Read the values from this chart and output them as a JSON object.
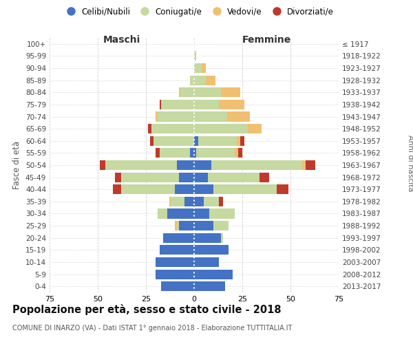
{
  "age_groups": [
    "0-4",
    "5-9",
    "10-14",
    "15-19",
    "20-24",
    "25-29",
    "30-34",
    "35-39",
    "40-44",
    "45-49",
    "50-54",
    "55-59",
    "60-64",
    "65-69",
    "70-74",
    "75-79",
    "80-84",
    "85-89",
    "90-94",
    "95-99",
    "100+"
  ],
  "birth_years": [
    "2013-2017",
    "2008-2012",
    "2003-2007",
    "1998-2002",
    "1993-1997",
    "1988-1992",
    "1983-1987",
    "1978-1982",
    "1973-1977",
    "1968-1972",
    "1963-1967",
    "1958-1962",
    "1953-1957",
    "1948-1952",
    "1943-1947",
    "1938-1942",
    "1933-1937",
    "1928-1932",
    "1923-1927",
    "1918-1922",
    "≤ 1917"
  ],
  "male": {
    "celibe": [
      17,
      20,
      20,
      18,
      16,
      8,
      14,
      5,
      10,
      8,
      9,
      2,
      0,
      0,
      0,
      0,
      0,
      0,
      0,
      0,
      0
    ],
    "coniugato": [
      0,
      0,
      0,
      0,
      0,
      1,
      5,
      7,
      28,
      30,
      37,
      16,
      21,
      22,
      19,
      17,
      7,
      2,
      0,
      0,
      0
    ],
    "vedovo": [
      0,
      0,
      0,
      0,
      0,
      1,
      0,
      1,
      0,
      0,
      0,
      0,
      0,
      0,
      1,
      0,
      1,
      0,
      0,
      0,
      0
    ],
    "divorziato": [
      0,
      0,
      0,
      0,
      0,
      0,
      0,
      0,
      4,
      3,
      3,
      2,
      2,
      2,
      0,
      1,
      0,
      0,
      0,
      0,
      0
    ]
  },
  "female": {
    "nubile": [
      16,
      20,
      13,
      18,
      14,
      10,
      8,
      5,
      10,
      7,
      9,
      1,
      2,
      0,
      0,
      0,
      0,
      0,
      0,
      0,
      0
    ],
    "coniugata": [
      0,
      0,
      0,
      0,
      1,
      8,
      13,
      8,
      33,
      27,
      47,
      20,
      20,
      28,
      17,
      13,
      14,
      6,
      4,
      1,
      0
    ],
    "vedova": [
      0,
      0,
      0,
      0,
      0,
      0,
      0,
      0,
      0,
      0,
      2,
      2,
      2,
      7,
      12,
      13,
      10,
      5,
      2,
      0,
      0
    ],
    "divorziata": [
      0,
      0,
      0,
      0,
      0,
      0,
      0,
      2,
      6,
      5,
      5,
      2,
      2,
      0,
      0,
      0,
      0,
      0,
      0,
      0,
      0
    ]
  },
  "colors": {
    "celibe": "#4472c4",
    "coniugato": "#c5d9a0",
    "vedovo": "#f0c070",
    "divorziato": "#c0392b"
  },
  "xlim": 75,
  "title": "Popolazione per età, sesso e stato civile - 2018",
  "subtitle": "COMUNE DI INARZO (VA) - Dati ISTAT 1° gennaio 2018 - Elaborazione TUTTITALIA.IT",
  "ylabel_left": "Fasce di età",
  "ylabel_right": "Anni di nascita",
  "xlabel_left": "Maschi",
  "xlabel_right": "Femmine",
  "bg_color": "#ffffff",
  "grid_color": "#cccccc",
  "bar_height": 0.8
}
